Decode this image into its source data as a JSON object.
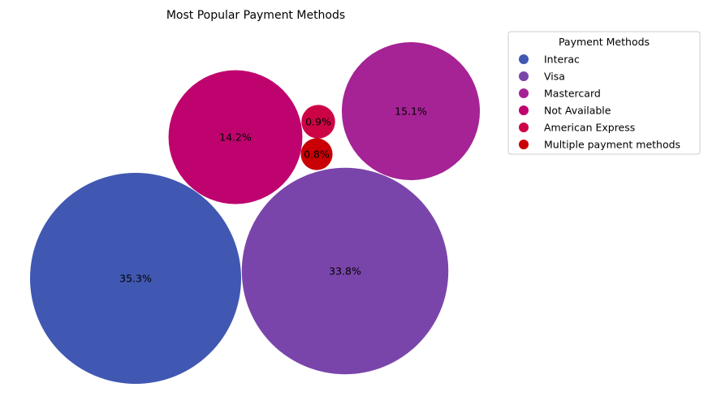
{
  "chart_data": {
    "type": "bubble",
    "title": "Most Popular Payment Methods",
    "legend": {
      "title": "Payment Methods",
      "placement": "top-right"
    },
    "series": [
      {
        "name": "Interac",
        "value": 35.3,
        "label": "35.3%",
        "color": "#4058b2"
      },
      {
        "name": "Visa",
        "value": 33.8,
        "label": "33.8%",
        "color": "#7a45ab"
      },
      {
        "name": "Mastercard",
        "value": 15.1,
        "label": "15.1%",
        "color": "#a52394"
      },
      {
        "name": "Not Available",
        "value": 14.2,
        "label": "14.2%",
        "color": "#bf036e"
      },
      {
        "name": "American Express",
        "value": 0.9,
        "label": "0.9%",
        "color": "#cc0445"
      },
      {
        "name": "Multiple payment methods",
        "value": 0.8,
        "label": "0.8%",
        "color": "#c90006"
      }
    ]
  }
}
